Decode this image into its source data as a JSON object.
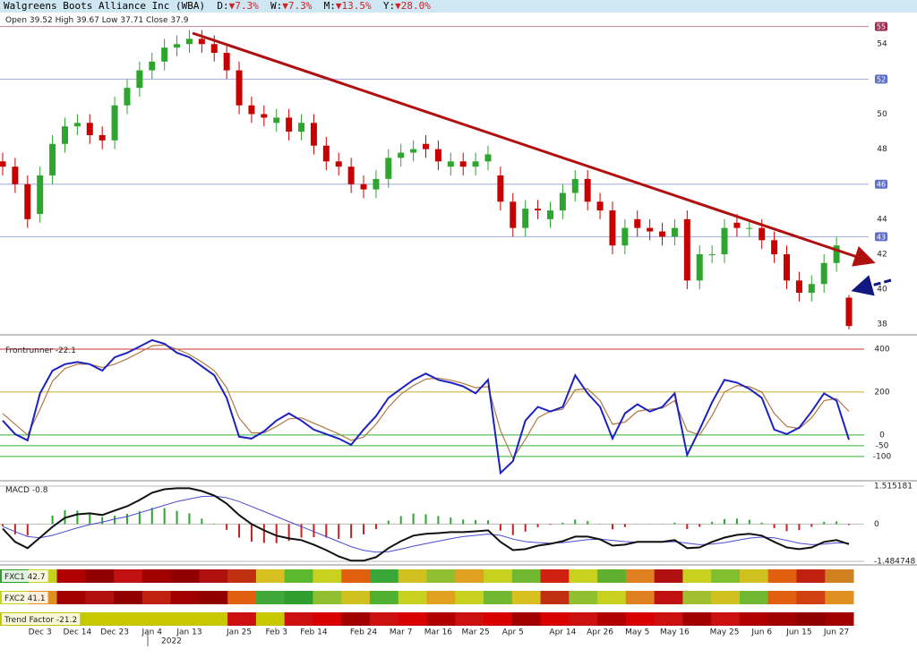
{
  "chart_data": [
    {
      "type": "candlestick",
      "title": "Walgreens Boots Alliance Inc (WBA)",
      "changes": [
        {
          "label": "D:",
          "value": "▼7.3%"
        },
        {
          "label": "W:",
          "value": "▼7.3%"
        },
        {
          "label": "M:",
          "value": "▼13.5%"
        },
        {
          "label": "Y:",
          "value": "▼28.0%"
        }
      ],
      "summary": [
        {
          "label": "Open",
          "value": 39.52
        },
        {
          "label": "High",
          "value": 39.67
        },
        {
          "label": "Low",
          "value": 37.71
        },
        {
          "label": "Close",
          "value": 37.9
        }
      ],
      "categories": [
        null,
        null,
        null,
        "Dec 3",
        null,
        null,
        "Dec 14",
        null,
        null,
        "Dec 23",
        null,
        null,
        "Jan 4",
        null,
        null,
        "Jan 13",
        null,
        null,
        null,
        "Jan 25",
        null,
        null,
        "Feb 3",
        null,
        null,
        "Feb 14",
        null,
        null,
        null,
        "Feb 24",
        null,
        null,
        "Mar 7",
        null,
        null,
        "Mar 16",
        null,
        null,
        "Mar 25",
        null,
        null,
        "Apr 5",
        null,
        null,
        null,
        "Apr 14",
        null,
        null,
        "Apr 26",
        null,
        null,
        "May 5",
        null,
        null,
        "May 16",
        null,
        null,
        null,
        "May 25",
        null,
        null,
        "Jun 6",
        null,
        null,
        "Jun 15",
        null,
        null,
        "Jun 27",
        null
      ],
      "year_label": "2022",
      "open": [
        47.3,
        47.0,
        46.0,
        44.3,
        46.5,
        48.3,
        49.3,
        49.5,
        48.8,
        48.5,
        50.5,
        51.5,
        52.5,
        53.0,
        53.8,
        54.0,
        54.3,
        54.0,
        53.5,
        52.5,
        50.5,
        50.0,
        49.5,
        49.8,
        49.0,
        49.5,
        48.2,
        47.3,
        47.0,
        46.0,
        45.7,
        46.3,
        47.5,
        47.8,
        48.3,
        48.0,
        47.0,
        47.3,
        47.0,
        47.3,
        46.5,
        45.0,
        43.5,
        44.6,
        44.0,
        44.5,
        45.5,
        46.3,
        45.0,
        44.5,
        42.5,
        44.0,
        43.5,
        43.3,
        43.0,
        44.0,
        40.5,
        42.0,
        42.0,
        43.8,
        43.5,
        43.5,
        42.8,
        42.0,
        40.5,
        39.8,
        40.3,
        41.5,
        39.52
      ],
      "high": [
        47.8,
        47.5,
        46.5,
        47.0,
        48.8,
        49.8,
        50.0,
        50.0,
        49.3,
        51.0,
        52.0,
        53.0,
        53.5,
        54.3,
        54.5,
        54.8,
        54.8,
        54.5,
        54.0,
        53.0,
        51.0,
        50.5,
        50.3,
        50.3,
        50.0,
        50.0,
        48.7,
        47.8,
        47.5,
        46.5,
        46.8,
        48.0,
        48.3,
        48.5,
        48.8,
        48.5,
        47.8,
        47.8,
        47.8,
        48.2,
        47.0,
        45.5,
        45.1,
        45.1,
        45.0,
        46.0,
        46.8,
        46.8,
        45.5,
        45.0,
        44.0,
        44.5,
        44.0,
        43.8,
        44.0,
        44.5,
        42.5,
        42.5,
        44.0,
        44.3,
        44.0,
        44.0,
        43.3,
        42.5,
        41.0,
        40.8,
        42.0,
        43.0,
        39.67
      ],
      "low": [
        46.5,
        45.5,
        43.5,
        43.8,
        46.0,
        47.8,
        48.8,
        48.3,
        48.0,
        48.0,
        50.0,
        51.0,
        52.0,
        52.5,
        53.3,
        53.5,
        53.5,
        53.0,
        52.0,
        50.0,
        49.5,
        49.3,
        49.0,
        48.5,
        48.5,
        47.7,
        46.8,
        46.5,
        45.5,
        45.2,
        45.2,
        45.8,
        47.0,
        47.3,
        47.5,
        46.8,
        46.5,
        46.5,
        46.5,
        46.8,
        44.5,
        43.0,
        43.0,
        44.0,
        43.5,
        44.0,
        45.0,
        44.5,
        44.0,
        42.0,
        42.0,
        43.0,
        42.8,
        42.5,
        42.5,
        40.0,
        40.0,
        41.5,
        41.5,
        43.0,
        43.0,
        42.3,
        41.5,
        40.0,
        39.3,
        39.3,
        39.8,
        41.0,
        37.71
      ],
      "close": [
        47.0,
        46.0,
        44.0,
        46.5,
        48.3,
        49.3,
        49.5,
        48.8,
        48.5,
        50.5,
        51.5,
        52.5,
        53.0,
        53.8,
        54.0,
        54.3,
        54.0,
        53.5,
        52.5,
        50.5,
        50.0,
        49.8,
        49.8,
        49.0,
        49.5,
        48.2,
        47.3,
        47.0,
        46.0,
        45.7,
        46.3,
        47.5,
        47.8,
        48.0,
        48.0,
        47.3,
        47.3,
        47.0,
        47.3,
        47.7,
        45.0,
        43.5,
        44.6,
        44.5,
        44.5,
        45.5,
        46.3,
        45.0,
        44.5,
        42.5,
        43.5,
        43.5,
        43.3,
        43.0,
        43.5,
        40.5,
        42.0,
        42.0,
        43.5,
        43.5,
        43.5,
        42.8,
        42.0,
        40.5,
        39.8,
        40.3,
        41.5,
        42.5,
        37.9
      ],
      "up_color": "#2ea52e",
      "down_color": "#c80000",
      "ylim": [
        37.5,
        55.75
      ],
      "yticks": [
        38,
        40,
        42,
        44,
        46,
        48,
        50,
        52,
        54
      ],
      "levels": [
        {
          "value": 55,
          "color": "#9c3050"
        },
        {
          "value": 52,
          "color": "#6070c8"
        },
        {
          "value": 46,
          "color": "#6070c8"
        },
        {
          "value": 43,
          "color": "#6070c8"
        }
      ]
    },
    {
      "type": "line",
      "title": "Frontrunner",
      "series": [
        {
          "color": "#1c22c0",
          "values": [
            67,
            4,
            -25,
            194,
            300,
            330,
            340,
            330,
            300,
            362,
            383,
            412,
            442,
            425,
            383,
            362,
            320,
            278,
            173,
            -8,
            -17,
            17,
            67,
            101,
            67,
            25,
            4,
            -17,
            -46,
            25,
            88,
            173,
            215,
            257,
            286,
            257,
            244,
            227,
            194,
            257,
            -177,
            -122,
            67,
            131,
            109,
            131,
            278,
            194,
            131,
            -17,
            101,
            143,
            109,
            131,
            194,
            -93,
            25,
            152,
            257,
            244,
            215,
            173,
            25,
            4,
            34,
            109,
            194,
            160,
            -22.1
          ]
        },
        {
          "color": "#b07848",
          "values": [
            100,
            50,
            0,
            120,
            250,
            310,
            330,
            330,
            315,
            330,
            355,
            385,
            415,
            420,
            400,
            375,
            340,
            300,
            220,
            80,
            10,
            10,
            40,
            75,
            80,
            55,
            30,
            5,
            -25,
            -10,
            50,
            130,
            190,
            230,
            260,
            265,
            255,
            240,
            220,
            225,
            20,
            -110,
            -20,
            80,
            110,
            120,
            210,
            215,
            160,
            50,
            60,
            110,
            120,
            125,
            160,
            20,
            0,
            90,
            200,
            230,
            225,
            200,
            100,
            40,
            30,
            80,
            160,
            170,
            110
          ]
        }
      ],
      "ylim": [
        -205,
        450
      ],
      "yticks": [
        -100,
        -50,
        0,
        200,
        400
      ],
      "tick_colors": [
        "#33b033",
        "#33b033",
        "#33b033",
        "#c8b030",
        "#c83030"
      ]
    },
    {
      "type": "macd",
      "title": "MACD",
      "series": [
        {
          "color": "#111111",
          "values": [
            -0.18,
            -0.71,
            -0.96,
            -0.54,
            -0.11,
            0.25,
            0.39,
            0.43,
            0.36,
            0.54,
            0.71,
            0.96,
            1.25,
            1.39,
            1.43,
            1.43,
            1.32,
            1.14,
            0.82,
            0.36,
            0,
            -0.25,
            -0.46,
            -0.57,
            -0.64,
            -0.82,
            -1.04,
            -1.29,
            -1.46,
            -1.46,
            -1.32,
            -0.96,
            -0.68,
            -0.46,
            -0.39,
            -0.36,
            -0.32,
            -0.32,
            -0.29,
            -0.25,
            -0.71,
            -1.04,
            -1.0,
            -0.86,
            -0.79,
            -0.68,
            -0.5,
            -0.5,
            -0.61,
            -0.86,
            -0.82,
            -0.71,
            -0.71,
            -0.71,
            -0.64,
            -0.96,
            -0.93,
            -0.71,
            -0.54,
            -0.43,
            -0.39,
            -0.46,
            -0.71,
            -0.93,
            -1.0,
            -0.93,
            -0.71,
            -0.64,
            -0.8
          ]
        },
        {
          "color": "#4a4ad0",
          "values": [
            -0.1,
            -0.3,
            -0.5,
            -0.55,
            -0.45,
            -0.3,
            -0.15,
            -0.02,
            0.08,
            0.2,
            0.3,
            0.45,
            0.6,
            0.75,
            0.9,
            1.0,
            1.1,
            1.12,
            1.05,
            0.9,
            0.7,
            0.5,
            0.3,
            0.1,
            -0.1,
            -0.3,
            -0.5,
            -0.7,
            -0.9,
            -1.05,
            -1.12,
            -1.1,
            -1.0,
            -0.88,
            -0.78,
            -0.68,
            -0.58,
            -0.5,
            -0.45,
            -0.4,
            -0.45,
            -0.6,
            -0.7,
            -0.74,
            -0.76,
            -0.74,
            -0.68,
            -0.62,
            -0.6,
            -0.65,
            -0.7,
            -0.72,
            -0.72,
            -0.72,
            -0.7,
            -0.76,
            -0.82,
            -0.8,
            -0.74,
            -0.65,
            -0.56,
            -0.52,
            -0.55,
            -0.65,
            -0.76,
            -0.82,
            -0.8,
            -0.75,
            -0.76
          ]
        }
      ],
      "histogram": [
        -0.08,
        -0.41,
        -0.46,
        0.01,
        0.34,
        0.55,
        0.54,
        0.45,
        0.28,
        0.34,
        0.41,
        0.51,
        0.65,
        0.64,
        0.53,
        0.43,
        0.22,
        0.02,
        -0.23,
        -0.54,
        -0.7,
        -0.75,
        -0.76,
        -0.67,
        -0.54,
        -0.52,
        -0.54,
        -0.59,
        -0.56,
        -0.41,
        -0.2,
        0.14,
        0.32,
        0.42,
        0.39,
        0.32,
        0.26,
        0.18,
        0.16,
        0.15,
        -0.26,
        -0.44,
        -0.3,
        -0.12,
        -0.03,
        0.06,
        0.18,
        0.12,
        -0.01,
        -0.21,
        -0.12,
        0.01,
        0.01,
        0.01,
        0.06,
        -0.2,
        -0.11,
        0.09,
        0.2,
        0.22,
        0.17,
        0.06,
        -0.16,
        -0.28,
        -0.24,
        -0.11,
        0.09,
        0.11,
        -0.04
      ],
      "up_color": "#2ea52e",
      "down_color": "#c82020",
      "ylim": [
        -1.484748,
        1.515181
      ],
      "yticks": [
        -1.484748,
        0,
        1.515181
      ]
    },
    {
      "type": "heatmap",
      "rows": [
        {
          "label": "FXC1",
          "value": 42.7,
          "colors": [
            "#2e9e2e",
            "#c8d020",
            "#b00000",
            "#900000",
            "#c01010",
            "#a00000",
            "#900000",
            "#b01010",
            "#c03010",
            "#d8c020",
            "#5cb82e",
            "#c8d020",
            "#e06010",
            "#3aa838",
            "#d0c020",
            "#90c030",
            "#e0a020",
            "#c8d020",
            "#70b830",
            "#d02010",
            "#c8d020",
            "#60b030",
            "#e08020",
            "#b01010",
            "#c8d020",
            "#80c030",
            "#d0c020",
            "#e06010",
            "#c02010",
            "#d08020"
          ]
        },
        {
          "label": "FXC2",
          "value": 41.1,
          "colors": [
            "#c8d020",
            "#e09020",
            "#a00000",
            "#b01010",
            "#900000",
            "#c02010",
            "#a00000",
            "#900000",
            "#e06010",
            "#40a838",
            "#2e9e2e",
            "#90c030",
            "#d0c020",
            "#50b030",
            "#c8d020",
            "#e0a020",
            "#c8d020",
            "#70b830",
            "#d8c020",
            "#c03010",
            "#90c030",
            "#c8d020",
            "#e08020",
            "#c01010",
            "#a0c030",
            "#d0c020",
            "#70b830",
            "#e06010",
            "#d04010",
            "#e09020"
          ]
        },
        {
          "label": "Trend Factor",
          "value": -21.2,
          "colors": [
            "#c8c800",
            "#c8c800",
            "#c8c800",
            "#c8c800",
            "#c8c800",
            "#c8c800",
            "#c8c800",
            "#c8c800",
            "#cc1010",
            "#c8c800",
            "#cc1010",
            "#d80000",
            "#a00000",
            "#cc1010",
            "#d80000",
            "#b00000",
            "#cc1010",
            "#d80000",
            "#a00000",
            "#d80000",
            "#cc1010",
            "#b00000",
            "#d80000",
            "#cc1010",
            "#a00000",
            "#cc1010",
            "#b00000",
            "#a00000",
            "#900000",
            "#a00000"
          ]
        }
      ]
    }
  ]
}
